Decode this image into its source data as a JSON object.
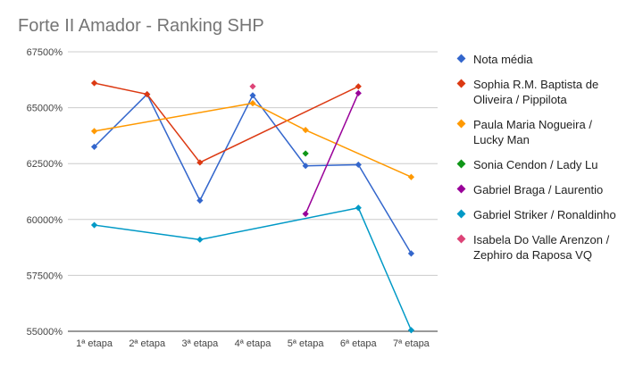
{
  "chart_data": {
    "type": "line",
    "title": "Forte II Amador - Ranking SHP",
    "xlabel": "",
    "ylabel": "",
    "categories": [
      "1ª etapa",
      "2ª etapa",
      "3ª etapa",
      "4ª etapa",
      "5ª etapa",
      "6ª etapa",
      "7ª etapa"
    ],
    "ylim": [
      55000,
      67500
    ],
    "yticks": [
      55000,
      57500,
      60000,
      62500,
      65000,
      67500
    ],
    "ytick_labels": [
      "55000%",
      "57500%",
      "60000%",
      "62500%",
      "65000%",
      "67500%"
    ],
    "grid": true,
    "legend_position": "right",
    "series": [
      {
        "name": "Nota média",
        "color": "#3366cc",
        "values": [
          63250,
          65600,
          60850,
          65550,
          62400,
          62450,
          58480
        ]
      },
      {
        "name": "Sophia R.M. Baptista de Oliveira / Pippilota",
        "color": "#dc3912",
        "values": [
          66100,
          65600,
          62550,
          null,
          null,
          65950,
          null
        ]
      },
      {
        "name": "Paula Maria Nogueira / Lucky Man",
        "color": "#ff9900",
        "values": [
          63950,
          null,
          null,
          65200,
          64000,
          null,
          61900
        ]
      },
      {
        "name": "Sonia Cendon / Lady Lu",
        "color": "#109618",
        "values": [
          null,
          null,
          null,
          null,
          62950,
          null,
          null
        ]
      },
      {
        "name": "Gabriel Braga / Laurentio",
        "color": "#990099",
        "values": [
          null,
          null,
          null,
          null,
          60250,
          65650,
          null
        ]
      },
      {
        "name": " Gabriel Striker / Ronaldinho",
        "color": "#0099c6",
        "values": [
          59750,
          null,
          59100,
          null,
          null,
          60520,
          55050
        ]
      },
      {
        "name": "Isabela Do Valle Arenzon / Zephiro da Raposa VQ",
        "color": "#dd4477",
        "values": [
          null,
          null,
          null,
          65950,
          null,
          null,
          null
        ]
      }
    ]
  }
}
